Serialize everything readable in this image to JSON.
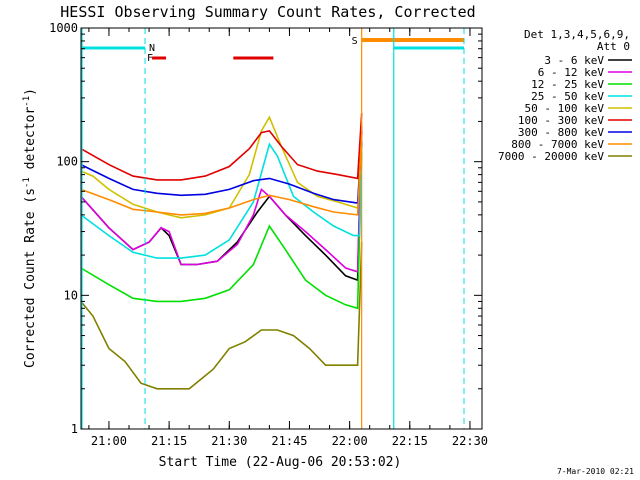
{
  "chart_data": {
    "type": "line",
    "title": "HESSI Observing Summary Count Rates, Corrected",
    "xlabel": "Start Time (22-Aug-06 20:53:02)",
    "ylabel": "Corrected Count Rate (s",
    "ylabel_sup1": "-1",
    "ylabel_mid": " detector",
    "ylabel_sup2": "-1",
    "ylabel_end": ")",
    "y_scale": "log",
    "ylim": [
      1,
      1000
    ],
    "xlim": [
      "20:53:02",
      "22:33"
    ],
    "x_ticks": [
      "21:00",
      "21:15",
      "21:30",
      "21:45",
      "22:00",
      "22:15",
      "22:30"
    ],
    "y_ticks": [
      "1",
      "10",
      "100",
      "1000"
    ],
    "legend_header": [
      "Det 1,3,4,5,6,9,",
      "Att 0"
    ],
    "legend_position": "right",
    "series": [
      {
        "name": "3 - 6 keV",
        "color": "#000000",
        "x": [
          "20:53",
          "21:00",
          "21:06",
          "21:10",
          "21:13",
          "21:15",
          "21:18",
          "21:22",
          "21:27",
          "21:32",
          "21:37",
          "21:40",
          "21:44",
          "21:49",
          "21:54",
          "21:59",
          "22:02",
          "22:03"
        ],
        "y": [
          55,
          32,
          22,
          25,
          32,
          28,
          17,
          17,
          18,
          25,
          42,
          55,
          40,
          28,
          20,
          14,
          13,
          170
        ]
      },
      {
        "name": "6 - 12 keV",
        "color": "#e000e0",
        "x": [
          "20:53",
          "21:00",
          "21:06",
          "21:10",
          "21:13",
          "21:15",
          "21:18",
          "21:22",
          "21:27",
          "21:32",
          "21:36",
          "21:38",
          "21:40",
          "21:44",
          "21:49",
          "21:54",
          "21:59",
          "22:02",
          "22:03"
        ],
        "y": [
          55,
          32,
          22,
          25,
          32,
          30,
          17,
          17,
          18,
          24,
          40,
          62,
          55,
          40,
          30,
          22,
          16,
          15,
          190
        ]
      },
      {
        "name": "12 - 25 keV",
        "color": "#00e000",
        "x": [
          "20:53",
          "21:00",
          "21:06",
          "21:12",
          "21:18",
          "21:24",
          "21:30",
          "21:36",
          "21:40",
          "21:44",
          "21:49",
          "21:54",
          "21:59",
          "22:02",
          "22:03"
        ],
        "y": [
          16,
          12,
          9.5,
          9,
          9,
          9.5,
          11,
          17,
          33,
          22,
          13,
          10,
          8.5,
          8,
          120
        ]
      },
      {
        "name": "25 - 50 keV",
        "color": "#00e0e0",
        "x": [
          "20:53",
          "21:00",
          "21:06",
          "21:12",
          "21:18",
          "21:24",
          "21:30",
          "21:36",
          "21:40",
          "21:42",
          "21:46",
          "21:51",
          "21:56",
          "22:01",
          "22:02.5",
          "22:03"
        ],
        "y": [
          40,
          28,
          21,
          19,
          19,
          20,
          26,
          50,
          135,
          110,
          55,
          42,
          33,
          28,
          28,
          150
        ]
      },
      {
        "name": "50 - 100 keV",
        "color": "#d0c000",
        "x": [
          "20:53",
          "20:56",
          "21:00",
          "21:06",
          "21:12",
          "21:18",
          "21:24",
          "21:30",
          "21:35",
          "21:38",
          "21:40",
          "21:43",
          "21:47",
          "21:52",
          "21:57",
          "22:02",
          "22:03"
        ],
        "y": [
          85,
          78,
          62,
          48,
          42,
          38,
          40,
          45,
          80,
          170,
          215,
          130,
          70,
          55,
          50,
          45,
          200
        ]
      },
      {
        "name": "100 - 300 keV",
        "color": "#e00000",
        "x": [
          "20:53",
          "21:00",
          "21:06",
          "21:12",
          "21:18",
          "21:24",
          "21:30",
          "21:35",
          "21:38",
          "21:40",
          "21:43",
          "21:47",
          "21:52",
          "21:57",
          "22:02",
          "22:03"
        ],
        "y": [
          125,
          95,
          78,
          73,
          73,
          78,
          92,
          125,
          165,
          170,
          130,
          95,
          85,
          80,
          75,
          230
        ]
      },
      {
        "name": "300 - 800 keV",
        "color": "#0000e0",
        "x": [
          "20:53",
          "21:00",
          "21:06",
          "21:12",
          "21:18",
          "21:24",
          "21:30",
          "21:36",
          "21:40",
          "21:45",
          "21:51",
          "21:56",
          "22:02",
          "22:03"
        ],
        "y": [
          95,
          75,
          62,
          58,
          56,
          57,
          62,
          72,
          75,
          68,
          58,
          52,
          49,
          140
        ]
      },
      {
        "name": "800 - 7000 keV",
        "color": "#ff8c00",
        "x": [
          "20:53",
          "21:00",
          "21:06",
          "21:12",
          "21:18",
          "21:24",
          "21:30",
          "21:36",
          "21:40",
          "21:45",
          "21:51",
          "21:56",
          "22:02",
          "22:03"
        ],
        "y": [
          62,
          52,
          44,
          42,
          40,
          41,
          45,
          52,
          56,
          52,
          46,
          42,
          40,
          160
        ]
      },
      {
        "name": "7000 - 20000 keV",
        "color": "#808000",
        "x": [
          "20:53",
          "20:56",
          "21:00",
          "21:04",
          "21:08",
          "21:12",
          "21:16",
          "21:20",
          "21:26",
          "21:30",
          "21:34",
          "21:38",
          "21:42",
          "21:46",
          "21:50",
          "21:54",
          "21:58",
          "22:02",
          "22:03"
        ],
        "y": [
          9,
          7,
          4,
          3.2,
          2.2,
          2,
          2,
          2,
          2.8,
          4,
          4.5,
          5.5,
          5.5,
          5,
          4,
          3,
          3,
          3,
          25
        ]
      }
    ],
    "annotations": [
      {
        "text": "N",
        "x": "21:09",
        "color": "#00e0e0"
      },
      {
        "text": "F",
        "x": "21:10",
        "color": "#e00000"
      },
      {
        "text": "S",
        "x": "22:03",
        "color": "#ff8c00"
      }
    ],
    "footer": "7-Mar-2010 02:21"
  }
}
